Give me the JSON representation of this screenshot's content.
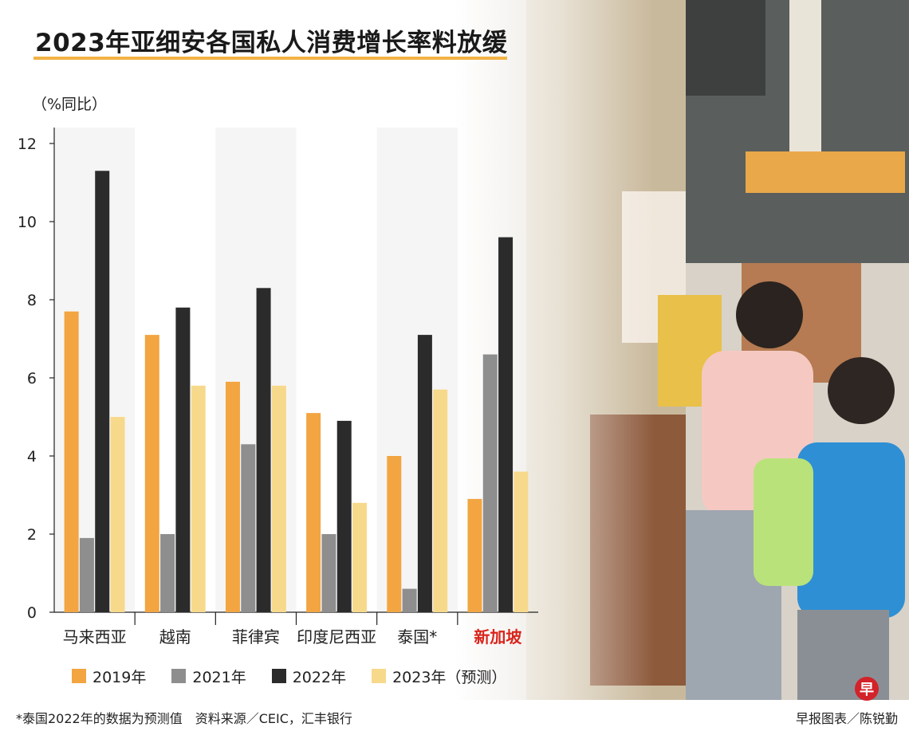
{
  "title": "2023年亚细安各国私人消费增长率料放缓",
  "unit_label": "（%同比）",
  "footnote": "*泰国2022年的数据为预测值　资料来源／CEIC，汇丰银行",
  "credit": "早报图表／陈锐勤",
  "seal_char": "早",
  "chart_data": {
    "type": "bar",
    "title": "2023年亚细安各国私人消费增长率料放缓",
    "ylabel": "（%同比）",
    "xlabel": "",
    "ylim": [
      0,
      12
    ],
    "yticks": [
      0,
      2,
      4,
      6,
      8,
      10,
      12
    ],
    "categories": [
      "马来西亚",
      "越南",
      "菲律宾",
      "印度尼西亚",
      "泰国*",
      "新加坡"
    ],
    "highlight_category": "新加坡",
    "highlight_color": "#d9251c",
    "legend_position": "bottom",
    "grid": false,
    "series": [
      {
        "name": "2019年",
        "color": "#f2a541",
        "values": [
          7.7,
          7.1,
          5.9,
          5.1,
          4.0,
          2.9
        ]
      },
      {
        "name": "2021年",
        "color": "#8e8e8e",
        "values": [
          1.9,
          2.0,
          4.3,
          2.0,
          0.6,
          6.6
        ]
      },
      {
        "name": "2022年",
        "color": "#2b2b2b",
        "values": [
          11.3,
          7.8,
          8.3,
          4.9,
          7.1,
          9.6
        ]
      },
      {
        "name": "2023年（预测）",
        "color": "#f7d98b",
        "values": [
          5.0,
          5.8,
          5.8,
          2.8,
          5.7,
          3.6
        ]
      }
    ]
  }
}
